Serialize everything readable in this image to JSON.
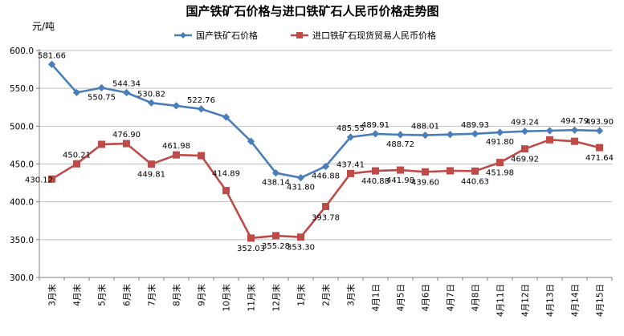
{
  "chart_data": {
    "type": "line",
    "title": "国产铁矿石价格与进口铁矿石人民币价格走势图",
    "ylabel": "元/吨",
    "ylim": [
      300,
      600
    ],
    "yticks": [
      "300.0",
      "350.0",
      "400.0",
      "450.0",
      "500.0",
      "550.0",
      "600.0"
    ],
    "grid": true,
    "legend_position": "top-right",
    "categories": [
      "3月末",
      "4月末",
      "5月末",
      "6月末",
      "7月末",
      "8月末",
      "9月末",
      "10月末",
      "11月末",
      "12月末",
      "1月末",
      "2月末",
      "3月末",
      "4月1日",
      "4月5日",
      "4月6日",
      "4月7日",
      "4月8日",
      "4月11日",
      "4月12日",
      "4月13日",
      "4月14日",
      "4月15日"
    ],
    "series": [
      {
        "name": "国产铁矿石价格",
        "color": "#4a7ebb",
        "marker": "diamond",
        "values": [
          581.66,
          544.5,
          550.75,
          544.34,
          530.82,
          527.0,
          522.76,
          512.0,
          480.0,
          438.14,
          431.8,
          446.88,
          485.55,
          489.91,
          488.72,
          488.01,
          489.0,
          489.93,
          491.8,
          493.24,
          494.0,
          494.79,
          493.9
        ],
        "labels": [
          "581.66",
          "",
          "550.75",
          "544.34",
          "530.82",
          "",
          "522.76",
          "",
          "",
          "438.14",
          "431.80",
          "446.88",
          "485.55",
          "489.91",
          "488.72",
          "488.01",
          "",
          "489.93",
          "491.80",
          "493.24",
          "",
          "494.79",
          "493.90"
        ]
      },
      {
        "name": "进口铁矿石现货贸易人民币价格",
        "color": "#be4b48",
        "marker": "square",
        "values": [
          430.12,
          450.21,
          476.0,
          476.9,
          449.81,
          461.98,
          461.0,
          414.89,
          352.03,
          355.28,
          353.3,
          393.78,
          437.41,
          440.88,
          441.98,
          439.6,
          441.0,
          440.63,
          451.98,
          469.92,
          482.0,
          480.0,
          471.64
        ],
        "labels": [
          "430.12",
          "450.21",
          "",
          "476.90",
          "449.81",
          "461.98",
          "",
          "414.89",
          "352.03",
          "355.28",
          "353.30",
          "393.78",
          "437.41",
          "440.88",
          "441.98",
          "439.60",
          "",
          "440.63",
          "451.98",
          "469.92",
          "",
          "",
          "471.64"
        ]
      }
    ]
  }
}
